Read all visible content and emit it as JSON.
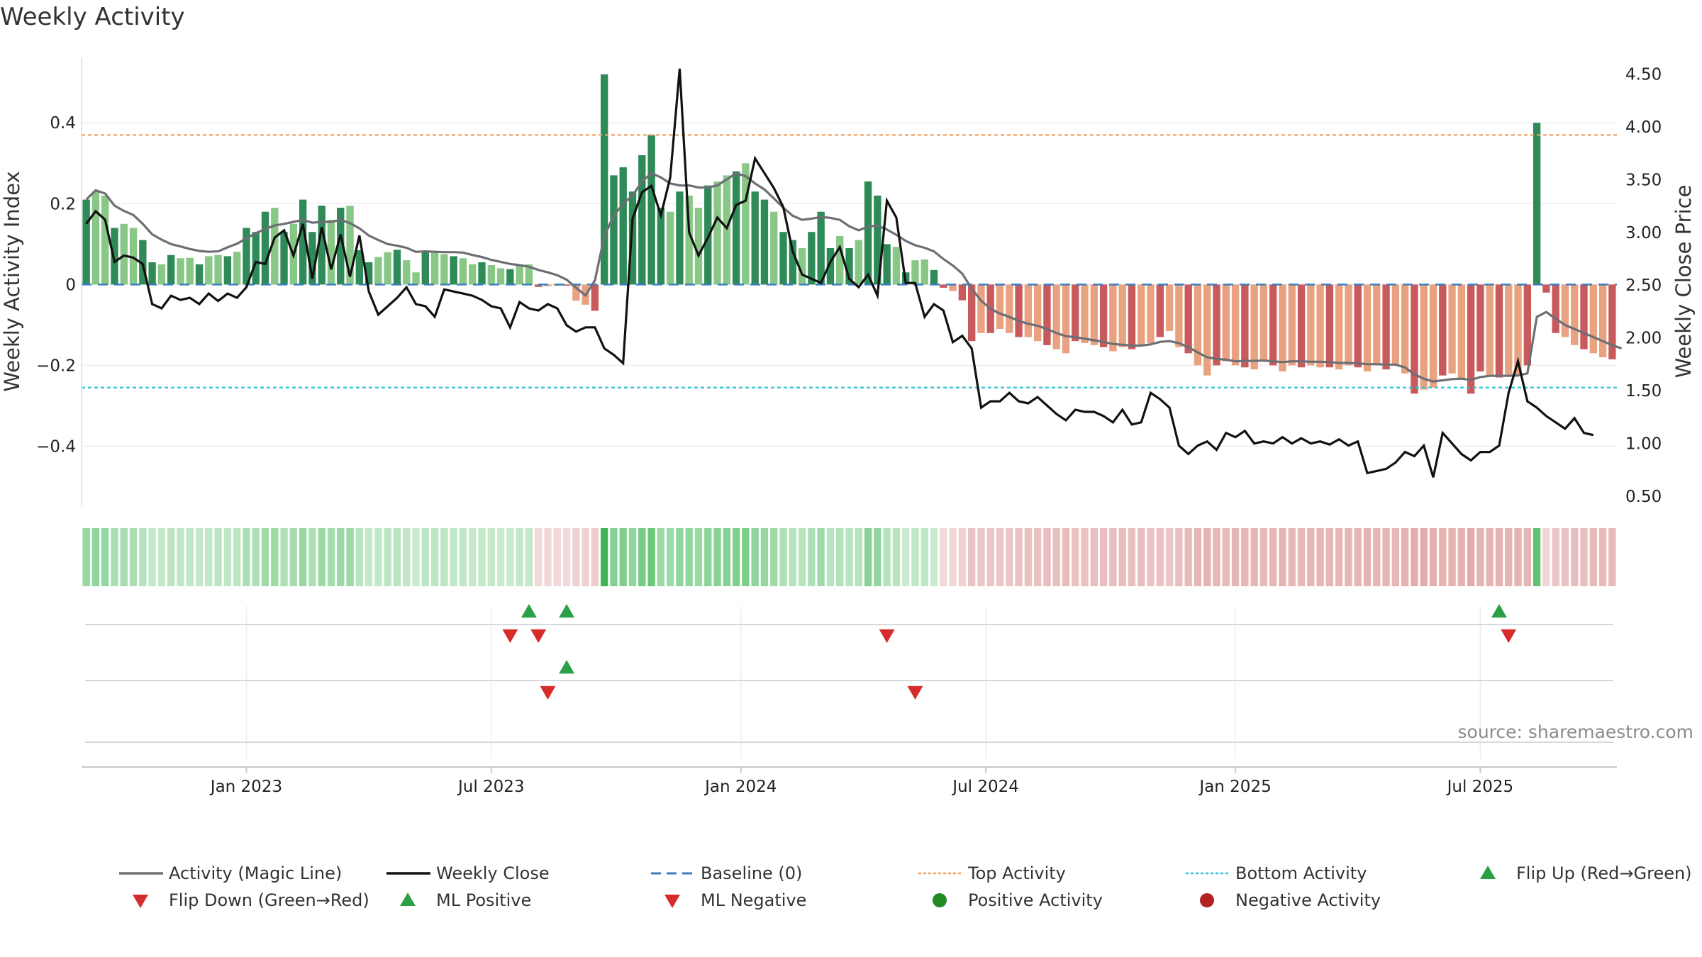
{
  "title": "Weekly Activity",
  "source": "source: sharemaestro.com",
  "colors": {
    "pos_dark": "#2e8a57",
    "pos_light": "#88c785",
    "neg_dark": "#c95a5c",
    "neg_light": "#e9a27f",
    "magic_line": "#6e6e75",
    "close_line": "#111111",
    "baseline": "#3a7dbf",
    "top_line": "#f0a060",
    "bottom_line": "#2ec4d4",
    "flip_up": "#2ca046",
    "flip_down": "#d62b2b",
    "positive_dot": "#228b22",
    "negative_dot": "#b22222"
  },
  "chart_data": {
    "type": "bar",
    "title": "Weekly Activity",
    "ylabel": "Weekly Activity Index",
    "y2label": "Weekly Close Price",
    "ylim": [
      -0.55,
      0.56
    ],
    "y2lim": [
      0.4,
      4.65
    ],
    "y_ticks": [
      0.4,
      0.2,
      0,
      -0.2,
      -0.4
    ],
    "y_tick_labels": [
      "0.4",
      "0.2",
      "0",
      "−0.2",
      "−0.4"
    ],
    "y2_ticks": [
      4.5,
      4.0,
      3.5,
      3.0,
      2.5,
      2.0,
      1.5,
      1.0,
      0.5
    ],
    "y2_tick_labels": [
      "4.50",
      "4.00",
      "3.50",
      "3.00",
      "2.50",
      "2.00",
      "1.50",
      "1.00",
      "0.50"
    ],
    "x_ticks": [
      {
        "label": "Jan 2023",
        "week": 17.5
      },
      {
        "label": "Jul 2023",
        "week": 43.5
      },
      {
        "label": "Jan 2024",
        "week": 70
      },
      {
        "label": "Jul 2024",
        "week": 96
      },
      {
        "label": "Jan 2025",
        "week": 122.5
      },
      {
        "label": "Jul 2025",
        "week": 148.5
      }
    ],
    "top_activity": 0.37,
    "bottom_activity": -0.255,
    "activity": [
      0.21,
      0.23,
      0.22,
      0.14,
      0.15,
      0.14,
      0.11,
      0.055,
      0.05,
      0.073,
      0.065,
      0.066,
      0.05,
      0.07,
      0.073,
      0.07,
      0.081,
      0.14,
      0.13,
      0.18,
      0.19,
      0.13,
      0.15,
      0.21,
      0.13,
      0.195,
      0.16,
      0.19,
      0.195,
      0.085,
      0.055,
      0.068,
      0.08,
      0.086,
      0.06,
      0.03,
      0.08,
      0.08,
      0.075,
      0.07,
      0.065,
      0.05,
      0.055,
      0.048,
      0.04,
      0.038,
      0.05,
      0.05,
      -0.006,
      -0.004,
      -0.003,
      -0.003,
      -0.04,
      -0.05,
      -0.065,
      0.52,
      0.27,
      0.29,
      0.23,
      0.32,
      0.37,
      0.19,
      0.18,
      0.23,
      0.22,
      0.19,
      0.245,
      0.255,
      0.27,
      0.28,
      0.3,
      0.23,
      0.21,
      0.18,
      0.13,
      0.11,
      0.09,
      0.13,
      0.18,
      0.09,
      0.12,
      0.09,
      0.11,
      0.255,
      0.22,
      0.1,
      0.093,
      0.03,
      0.06,
      0.062,
      0.036,
      -0.008,
      -0.016,
      -0.039,
      -0.14,
      -0.12,
      -0.12,
      -0.11,
      -0.12,
      -0.13,
      -0.13,
      -0.14,
      -0.15,
      -0.16,
      -0.17,
      -0.14,
      -0.145,
      -0.15,
      -0.155,
      -0.165,
      -0.155,
      -0.16,
      -0.15,
      -0.145,
      -0.13,
      -0.115,
      -0.155,
      -0.17,
      -0.2,
      -0.225,
      -0.2,
      -0.19,
      -0.2,
      -0.205,
      -0.21,
      -0.19,
      -0.2,
      -0.215,
      -0.2,
      -0.205,
      -0.2,
      -0.205,
      -0.205,
      -0.21,
      -0.2,
      -0.205,
      -0.215,
      -0.2,
      -0.21,
      -0.2,
      -0.22,
      -0.27,
      -0.26,
      -0.255,
      -0.225,
      -0.22,
      -0.235,
      -0.27,
      -0.215,
      -0.225,
      -0.23,
      -0.225,
      -0.225,
      -0.2,
      0.4,
      -0.02,
      -0.12,
      -0.13,
      -0.15,
      -0.16,
      -0.17,
      -0.18,
      -0.185
    ],
    "magic_line": [
      0.21,
      0.233,
      0.225,
      0.195,
      0.182,
      0.172,
      0.15,
      0.124,
      0.111,
      0.1,
      0.094,
      0.088,
      0.083,
      0.081,
      0.082,
      0.092,
      0.101,
      0.114,
      0.127,
      0.137,
      0.146,
      0.15,
      0.155,
      0.16,
      0.153,
      0.155,
      0.155,
      0.16,
      0.152,
      0.139,
      0.121,
      0.11,
      0.1,
      0.096,
      0.091,
      0.081,
      0.082,
      0.081,
      0.08,
      0.08,
      0.079,
      0.073,
      0.068,
      0.061,
      0.056,
      0.051,
      0.048,
      0.044,
      0.036,
      0.03,
      0.023,
      0.012,
      -0.008,
      -0.027,
      0.01,
      0.12,
      0.17,
      0.2,
      0.22,
      0.255,
      0.275,
      0.265,
      0.25,
      0.245,
      0.245,
      0.24,
      0.24,
      0.245,
      0.26,
      0.275,
      0.268,
      0.25,
      0.235,
      0.213,
      0.19,
      0.17,
      0.16,
      0.163,
      0.167,
      0.165,
      0.16,
      0.144,
      0.134,
      0.143,
      0.146,
      0.136,
      0.123,
      0.108,
      0.097,
      0.091,
      0.082,
      0.063,
      0.047,
      0.027,
      -0.01,
      -0.04,
      -0.06,
      -0.072,
      -0.08,
      -0.09,
      -0.097,
      -0.102,
      -0.11,
      -0.12,
      -0.128,
      -0.13,
      -0.134,
      -0.138,
      -0.142,
      -0.147,
      -0.149,
      -0.151,
      -0.151,
      -0.148,
      -0.142,
      -0.14,
      -0.145,
      -0.155,
      -0.168,
      -0.18,
      -0.184,
      -0.186,
      -0.19,
      -0.189,
      -0.189,
      -0.188,
      -0.19,
      -0.192,
      -0.19,
      -0.19,
      -0.191,
      -0.191,
      -0.192,
      -0.194,
      -0.194,
      -0.195,
      -0.197,
      -0.197,
      -0.198,
      -0.198,
      -0.205,
      -0.222,
      -0.233,
      -0.24,
      -0.237,
      -0.234,
      -0.233,
      -0.236,
      -0.229,
      -0.226,
      -0.226,
      -0.226,
      -0.225,
      -0.22,
      -0.08,
      -0.068,
      -0.085,
      -0.1,
      -0.11,
      -0.12,
      -0.13,
      -0.14,
      -0.15,
      -0.158
    ],
    "weekly_close": [
      3.08,
      3.2,
      3.12,
      2.72,
      2.78,
      2.76,
      2.7,
      2.32,
      2.28,
      2.4,
      2.36,
      2.38,
      2.32,
      2.42,
      2.35,
      2.42,
      2.38,
      2.48,
      2.72,
      2.7,
      2.95,
      3.02,
      2.78,
      3.08,
      2.56,
      3.05,
      2.65,
      2.98,
      2.58,
      2.97,
      2.44,
      2.22,
      2.3,
      2.38,
      2.48,
      2.32,
      2.3,
      2.2,
      2.46,
      2.44,
      2.42,
      2.4,
      2.36,
      2.3,
      2.28,
      2.1,
      2.34,
      2.28,
      2.26,
      2.32,
      2.28,
      2.12,
      2.06,
      2.1,
      2.1,
      1.9,
      1.84,
      1.76,
      3.13,
      3.38,
      3.44,
      3.16,
      3.52,
      4.55,
      3.0,
      2.78,
      2.95,
      3.14,
      3.04,
      3.26,
      3.3,
      3.7,
      3.56,
      3.42,
      3.24,
      2.82,
      2.6,
      2.56,
      2.52,
      2.72,
      2.86,
      2.56,
      2.48,
      2.6,
      2.4,
      3.3,
      3.14,
      2.52,
      2.52,
      2.2,
      2.32,
      2.26,
      1.96,
      2.02,
      1.9,
      1.34,
      1.4,
      1.4,
      1.48,
      1.4,
      1.38,
      1.44,
      1.36,
      1.28,
      1.22,
      1.32,
      1.3,
      1.3,
      1.26,
      1.2,
      1.32,
      1.18,
      1.2,
      1.48,
      1.42,
      1.34,
      0.98,
      0.9,
      0.98,
      1.02,
      0.94,
      1.1,
      1.06,
      1.12,
      1.0,
      1.02,
      1.0,
      1.06,
      1.0,
      1.05,
      1.0,
      1.02,
      0.99,
      1.04,
      0.98,
      1.02,
      0.72,
      0.74,
      0.76,
      0.82,
      0.92,
      0.88,
      0.98,
      0.68,
      1.1,
      1.0,
      0.9,
      0.84,
      0.92,
      0.92,
      0.98,
      1.48,
      1.78,
      1.4,
      1.34,
      1.26,
      1.2,
      1.14,
      1.24,
      1.1,
      1.08
    ],
    "strength_strip_mapping": "each week coloured by activity sign and magnitude",
    "ml_flip_up_weeks": [
      47,
      51,
      150
    ],
    "ml_flip_down_weeks": [
      45,
      48,
      85,
      151
    ],
    "activity_flip_up_weeks": [
      51
    ],
    "activity_flip_down_weeks": [
      49,
      88
    ]
  },
  "legend": [
    {
      "label": "Activity (Magic Line)",
      "marker": "line",
      "color": "#6e6e75"
    },
    {
      "label": "Weekly Close",
      "marker": "line",
      "color": "#111111"
    },
    {
      "label": "Baseline (0)",
      "marker": "dashed",
      "color": "#3a7dbf"
    },
    {
      "label": "Top Activity",
      "marker": "dotted",
      "color": "#f0a060"
    },
    {
      "label": "Bottom Activity",
      "marker": "dotted",
      "color": "#2ec4d4"
    },
    {
      "label": "Flip Up (Red→Green)",
      "marker": "triangle-up",
      "color": "#2ca046"
    },
    {
      "label": "Flip Down (Green→Red)",
      "marker": "triangle-down",
      "color": "#d62b2b"
    },
    {
      "label": "ML Positive",
      "marker": "triangle-up",
      "color": "#2ca046"
    },
    {
      "label": "ML Negative",
      "marker": "triangle-down",
      "color": "#d62b2b"
    },
    {
      "label": "Positive Activity",
      "marker": "circle",
      "color": "#228b22"
    },
    {
      "label": "Negative Activity",
      "marker": "circle",
      "color": "#b22222"
    }
  ]
}
